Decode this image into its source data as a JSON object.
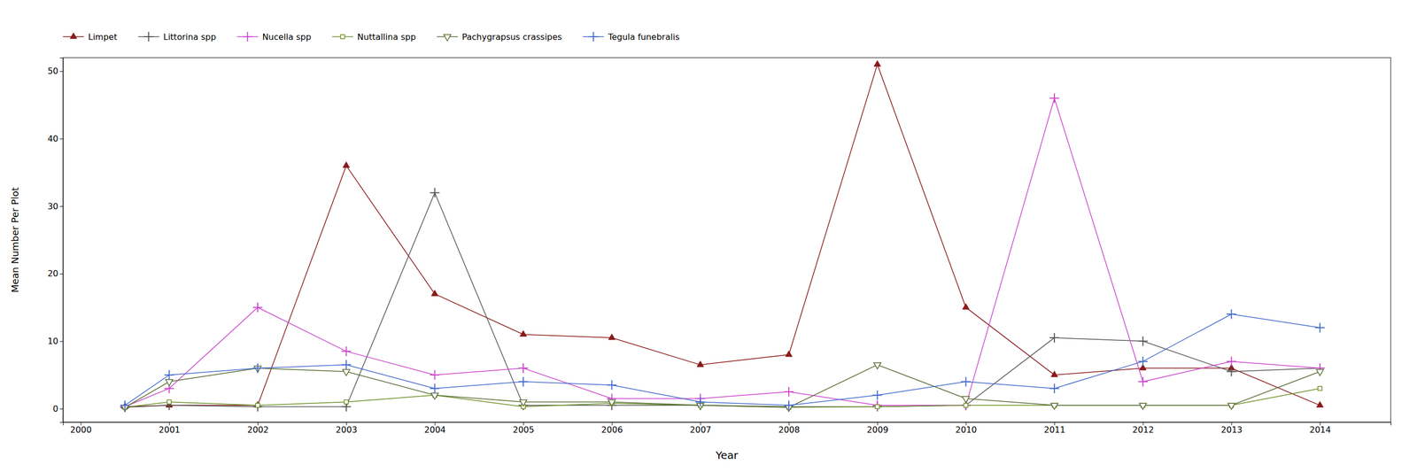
{
  "chart_data": {
    "type": "line",
    "x": [
      2000.5,
      2001,
      2002,
      2003,
      2004,
      2005,
      2006,
      2007,
      2008,
      2009,
      2010,
      2011,
      2012,
      2013,
      2014
    ],
    "series": [
      {
        "name": "Limpet",
        "color": "#8B1A1A",
        "marker": "triangle-up",
        "values": [
          0.3,
          0.5,
          0.5,
          36,
          17,
          11,
          10.5,
          6.5,
          8,
          51,
          15,
          5,
          6,
          6,
          0.5
        ]
      },
      {
        "name": "Littorina spp",
        "color": "#555555",
        "marker": "plus",
        "values": [
          0.2,
          0.5,
          0.3,
          0.3,
          32,
          0.5,
          0.5,
          0.5,
          0.3,
          0.3,
          0.5,
          10.5,
          10,
          5.5,
          6
        ]
      },
      {
        "name": "Nucella spp",
        "color": "#CC44CC",
        "marker": "plus",
        "values": [
          0.3,
          3,
          15,
          8.5,
          5,
          6,
          1.5,
          1.5,
          2.5,
          0.5,
          0.5,
          46,
          4,
          7,
          6
        ]
      },
      {
        "name": "Nuttallina spp",
        "color": "#6B8E23",
        "marker": "square-open",
        "values": [
          0.2,
          1,
          0.5,
          1,
          2,
          0.3,
          0.8,
          0.5,
          0.2,
          0.3,
          0.5,
          0.5,
          0.5,
          0.5,
          3
        ]
      },
      {
        "name": "Pachygrapsus crassipes",
        "color": "#556B2F",
        "marker": "triangle-down-open",
        "values": [
          0.2,
          4,
          6,
          5.5,
          2,
          1,
          1,
          0.5,
          0.2,
          6.5,
          1.5,
          0.5,
          0.5,
          0.5,
          5.5
        ]
      },
      {
        "name": "Tegula funebralis",
        "color": "#4169CD",
        "marker": "plus",
        "values": [
          0.5,
          5,
          6,
          6.5,
          3,
          4,
          3.5,
          1,
          0.5,
          2,
          4,
          3,
          7,
          14,
          12
        ]
      }
    ],
    "xlim": [
      1999.8,
      2014.8
    ],
    "xticks": [
      2000,
      2001,
      2002,
      2003,
      2004,
      2005,
      2006,
      2007,
      2008,
      2009,
      2010,
      2011,
      2012,
      2013,
      2014
    ],
    "ylim": [
      -2,
      52
    ],
    "yticks": [
      0,
      10,
      20,
      30,
      40,
      50
    ],
    "xlabel": "Year",
    "ylabel": "Mean Number Per Plot",
    "grid": false,
    "legend": "top-left"
  }
}
